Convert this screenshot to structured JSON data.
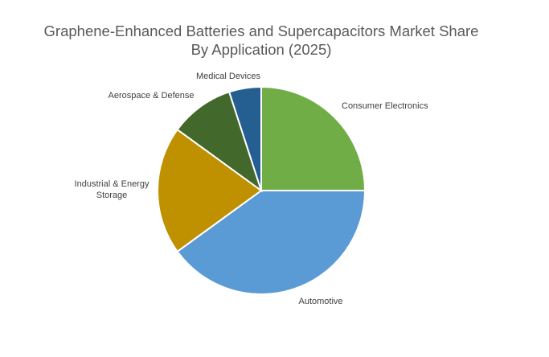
{
  "chart_data": {
    "type": "pie",
    "title_line1": "Graphene-Enhanced Batteries and Supercapacitors Market Share",
    "title_line2": "By Application (2025)",
    "slices": [
      {
        "label": "Consumer Electronics",
        "value": 25,
        "color": "#70AD47"
      },
      {
        "label": "Automotive",
        "value": 40,
        "color": "#5B9BD5"
      },
      {
        "label": "Industrial & Energy Storage",
        "value": 20,
        "color": "#BF9000"
      },
      {
        "label": "Aerospace & Defense",
        "value": 10,
        "color": "#43682B"
      },
      {
        "label": "Medical Devices",
        "value": 5,
        "color": "#255E91"
      }
    ],
    "legend": "none"
  }
}
